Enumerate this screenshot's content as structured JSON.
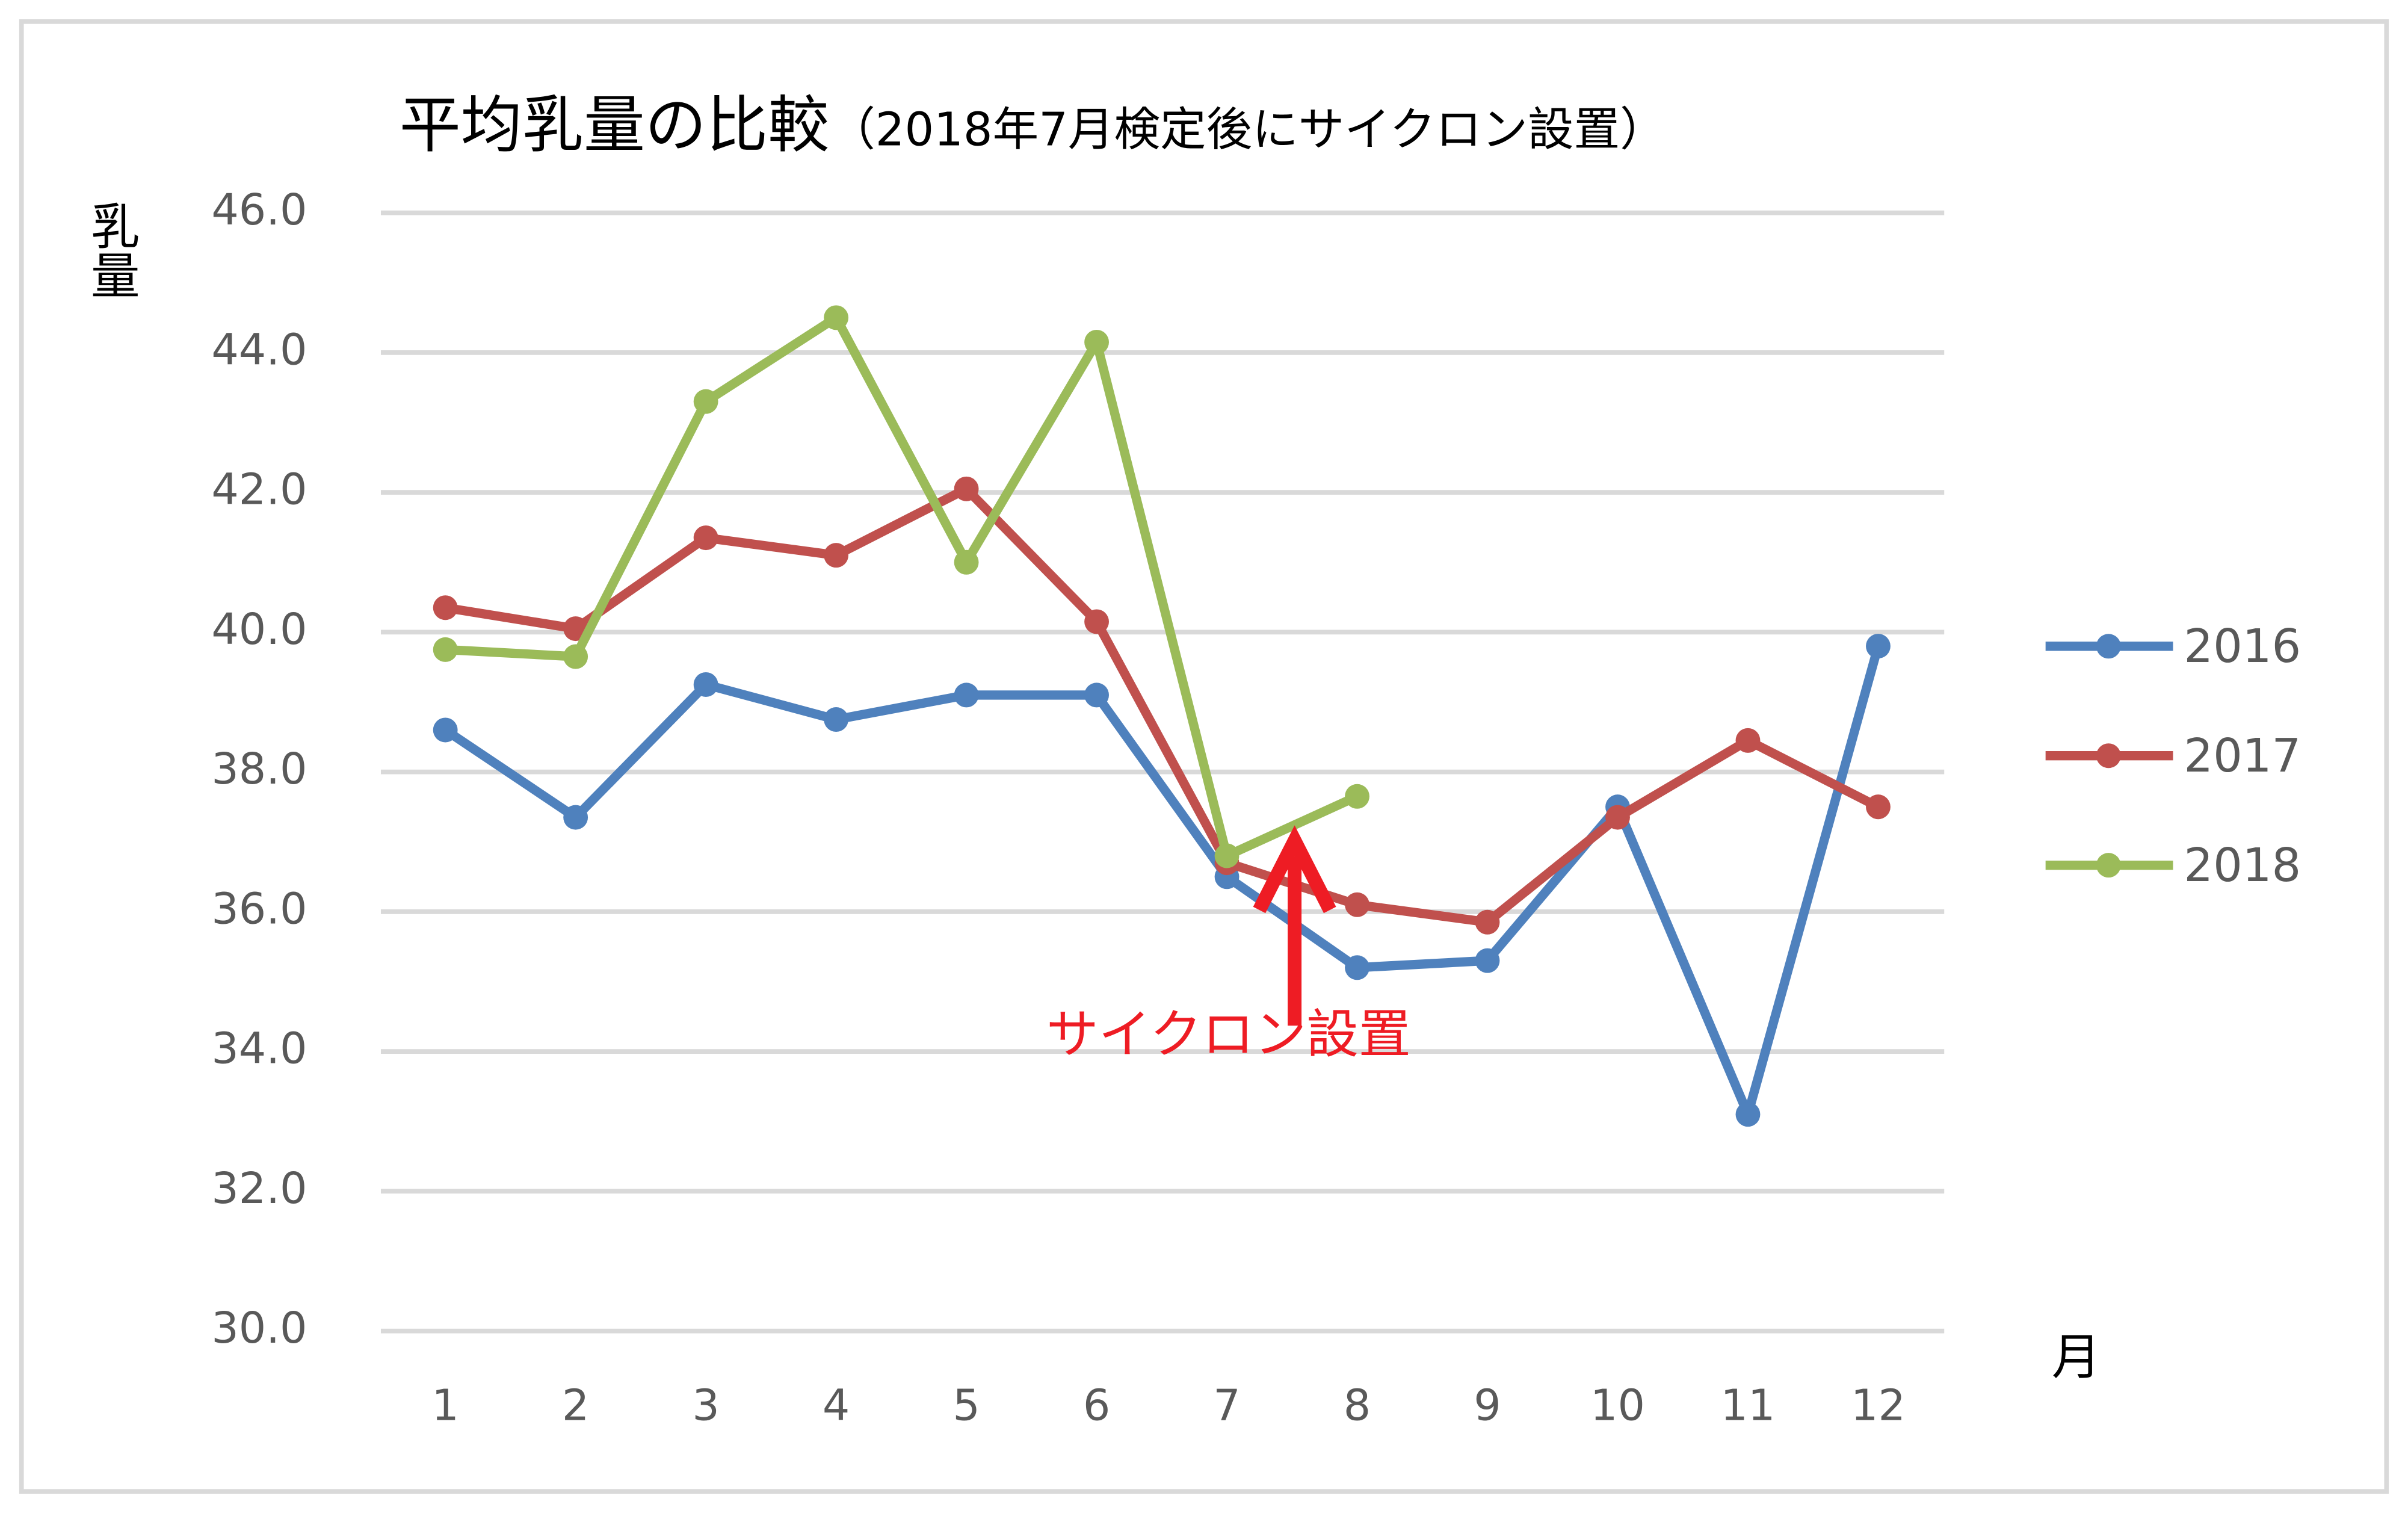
{
  "chart_data": {
    "type": "line",
    "title": "平均乳量の比較",
    "subtitle": "（2018年7月検定後にサイクロン設置）",
    "y_label": "乳量",
    "x_label": "月",
    "annotation": "サイクロン設置",
    "annotation_color": "#ee1c24",
    "categories": [
      "1",
      "2",
      "3",
      "4",
      "5",
      "6",
      "7",
      "8",
      "9",
      "10",
      "11",
      "12"
    ],
    "series": [
      {
        "name": "2016",
        "color": "#4f81bd",
        "values": [
          38.6,
          37.35,
          39.25,
          38.75,
          39.1,
          39.1,
          36.5,
          35.2,
          35.3,
          37.5,
          33.1,
          39.8
        ]
      },
      {
        "name": "2017",
        "color": "#c0504d",
        "values": [
          40.35,
          40.05,
          41.35,
          41.1,
          42.05,
          40.15,
          36.7,
          36.1,
          35.85,
          37.35,
          38.45,
          37.5
        ]
      },
      {
        "name": "2018",
        "color": "#9bbb59",
        "values": [
          39.75,
          39.65,
          43.3,
          44.5,
          41.0,
          44.15,
          36.8,
          37.65,
          null,
          null,
          null,
          null
        ]
      }
    ],
    "ylim": [
      30,
      46
    ],
    "yticks": [
      {
        "value": 30,
        "label": "30.0"
      },
      {
        "value": 32,
        "label": "32.0"
      },
      {
        "value": 34,
        "label": "34.0"
      },
      {
        "value": 36,
        "label": "36.0"
      },
      {
        "value": 38,
        "label": "38.0"
      },
      {
        "value": 40,
        "label": "40.0"
      },
      {
        "value": 42,
        "label": "42.0"
      },
      {
        "value": 44,
        "label": "44.0"
      },
      {
        "value": 46,
        "label": "46.0"
      }
    ],
    "grid": true,
    "legend": "right"
  }
}
